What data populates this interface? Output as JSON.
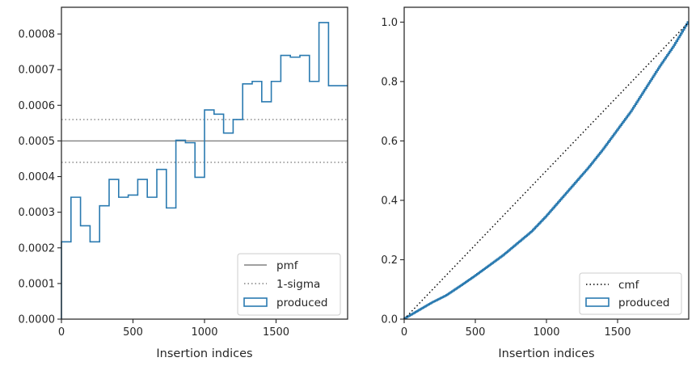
{
  "chart_data": [
    {
      "type": "histogram",
      "xlabel": "Insertion indices",
      "ylabel": "",
      "xlim": [
        0,
        2000
      ],
      "ylim": [
        0,
        0.000875
      ],
      "x_ticks": [
        0,
        500,
        1000,
        1500
      ],
      "x_tick_labels": [
        "0",
        "500",
        "1000",
        "1500"
      ],
      "y_ticks": [
        0,
        0.0001,
        0.0002,
        0.0003,
        0.0004,
        0.0005,
        0.0006,
        0.0007,
        0.0008
      ],
      "y_tick_labels": [
        "0.0000",
        "0.0001",
        "0.0002",
        "0.0003",
        "0.0004",
        "0.0005",
        "0.0006",
        "0.0007",
        "0.0008"
      ],
      "grid": false,
      "legend_position": "bottom-right",
      "bin_edges": [
        0,
        66.7,
        133.3,
        200,
        266.7,
        333.3,
        400,
        466.7,
        533.3,
        600,
        666.7,
        733.3,
        800,
        866.7,
        933.3,
        1000,
        1066.7,
        1133.3,
        1200,
        1266.7,
        1333.3,
        1400,
        1466.7,
        1533.3,
        1600,
        1666.7,
        1733.3,
        1800,
        1866.7,
        1933.3,
        2000
      ],
      "values": [
        0.000217,
        0.000342,
        0.000262,
        0.000217,
        0.000318,
        0.000392,
        0.000342,
        0.000348,
        0.000392,
        0.000342,
        0.00042,
        0.000312,
        0.000502,
        0.000495,
        0.000398,
        0.000587,
        0.000575,
        0.000522,
        0.00056,
        0.00066,
        0.000667,
        0.00061,
        0.000667,
        0.00074,
        0.000735,
        0.00074,
        0.000667,
        0.000832,
        0.000655,
        0.000655
      ],
      "series": [
        {
          "name": "pmf",
          "kind": "hline",
          "y": 0.0005,
          "color": "#808080",
          "style": "solid"
        },
        {
          "name": "1-sigma",
          "kind": "hlines",
          "y": [
            0.00056,
            0.00044
          ],
          "color": "#808080",
          "style": "dotted"
        },
        {
          "name": "produced",
          "kind": "step-histogram",
          "color": "#2a7ab0"
        }
      ]
    },
    {
      "type": "line",
      "xlabel": "Insertion indices",
      "ylabel": "",
      "xlim": [
        0,
        2000
      ],
      "ylim": [
        0,
        1.05
      ],
      "x_ticks": [
        0,
        500,
        1000,
        1500
      ],
      "x_tick_labels": [
        "0",
        "500",
        "1000",
        "1500"
      ],
      "y_ticks": [
        0,
        0.2,
        0.4,
        0.6,
        0.8,
        1.0
      ],
      "y_tick_labels": [
        "0.0",
        "0.2",
        "0.4",
        "0.6",
        "0.8",
        "1.0"
      ],
      "grid": false,
      "legend_position": "bottom-right",
      "series": [
        {
          "name": "cmf",
          "color": "#000000",
          "style": "dotted",
          "x": [
            0,
            2000
          ],
          "values": [
            0,
            1.0
          ]
        },
        {
          "name": "produced",
          "color": "#2a7ab0",
          "style": "step",
          "x": [
            0,
            100,
            200,
            300,
            400,
            500,
            600,
            700,
            800,
            900,
            1000,
            1100,
            1200,
            1300,
            1400,
            1500,
            1600,
            1700,
            1800,
            1900,
            2000
          ],
          "values": [
            0,
            0.028,
            0.056,
            0.08,
            0.112,
            0.145,
            0.18,
            0.215,
            0.255,
            0.295,
            0.345,
            0.4,
            0.455,
            0.51,
            0.57,
            0.635,
            0.7,
            0.775,
            0.85,
            0.92,
            1.0
          ]
        }
      ]
    }
  ],
  "colors": {
    "histogram": "#2a7ab0",
    "reference": "#808080",
    "cmf": "#000000",
    "axes": "#262626"
  }
}
